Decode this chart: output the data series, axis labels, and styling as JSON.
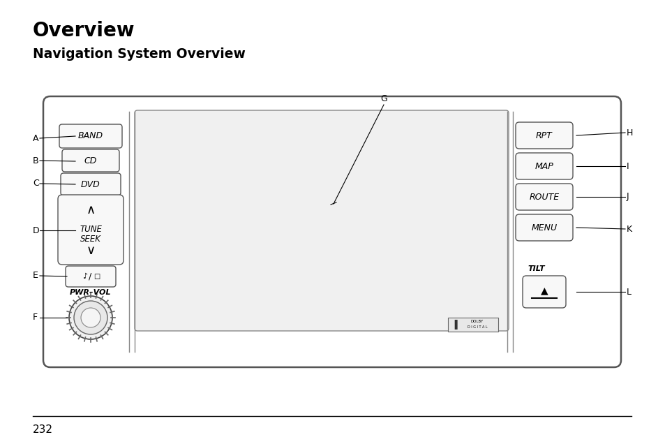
{
  "title1": "Overview",
  "title2": "Navigation System Overview",
  "page_number": "232",
  "bg_color": "#ffffff",
  "device_facecolor": "#ffffff",
  "device_edge": "#555555",
  "screen_facecolor": "#f0f0f0",
  "screen_edge": "#888888",
  "btn_facecolor": "#f8f8f8",
  "btn_edge": "#555555",
  "label_G": "G",
  "labels_left": [
    "A",
    "B",
    "C",
    "D",
    "E",
    "F"
  ],
  "labels_right": [
    "H",
    "I",
    "J",
    "K",
    "L"
  ],
  "btn_left_labels": [
    "BAND",
    "CD",
    "DVD",
    "TUNE\nSEEK",
    "♪/□"
  ],
  "btn_right_labels": [
    "RPT",
    "MAP",
    "ROUTE",
    "MENU"
  ],
  "btn_tilt": "TILT",
  "pwr_vol_label": "PWR–VOL",
  "dolby_text1": "DOLBY",
  "dolby_text2": "D I G I T A L"
}
